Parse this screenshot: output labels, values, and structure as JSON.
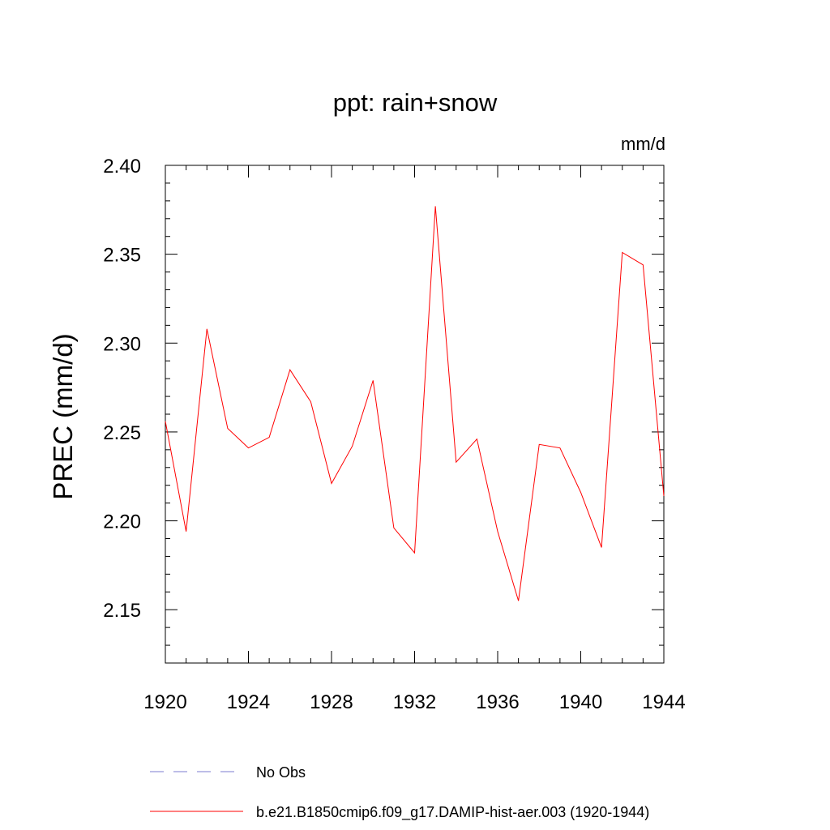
{
  "chart_data": {
    "type": "line",
    "title": "ppt: rain+snow",
    "units": "mm/d",
    "ylabel": "PREC  (mm/d)",
    "xlabel": "",
    "xlim": [
      1920,
      1944
    ],
    "ylim": [
      2.12,
      2.4
    ],
    "xticks": [
      "1920",
      "1924",
      "1928",
      "1932",
      "1936",
      "1940",
      "1944"
    ],
    "yticks": [
      "2.15",
      "2.20",
      "2.25",
      "2.30",
      "2.35",
      "2.40"
    ],
    "grid": false,
    "legend_position": "bottom",
    "series": [
      {
        "name": "No Obs",
        "color": "#7b7bd0",
        "style": "dashed",
        "x": [],
        "values": []
      },
      {
        "name": "b.e21.B1850cmip6.f09_g17.DAMIP-hist-aer.003 (1920-1944)",
        "color": "#ff0000",
        "style": "solid",
        "x": [
          1920,
          1921,
          1922,
          1923,
          1924,
          1925,
          1926,
          1927,
          1928,
          1929,
          1930,
          1931,
          1932,
          1933,
          1934,
          1935,
          1936,
          1937,
          1938,
          1939,
          1940,
          1941,
          1942,
          1943,
          1944
        ],
        "values": [
          2.256,
          2.194,
          2.308,
          2.252,
          2.241,
          2.247,
          2.285,
          2.267,
          2.221,
          2.242,
          2.279,
          2.196,
          2.182,
          2.377,
          2.233,
          2.246,
          2.194,
          2.155,
          2.243,
          2.241,
          2.216,
          2.185,
          2.351,
          2.344,
          2.214
        ]
      }
    ]
  }
}
